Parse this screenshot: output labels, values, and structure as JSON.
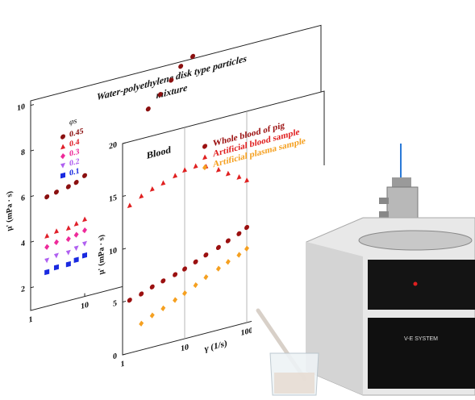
{
  "chart_data": [
    {
      "type": "scatter",
      "title": [
        "Water-polyethylene disk type particles",
        "mixture"
      ],
      "ylabel": "μ' (mPa · s)",
      "legend_title": "φs",
      "xscale": "log",
      "xlim": [
        1,
        100000
      ],
      "xticks": [
        1,
        10
      ],
      "ylim": [
        1,
        10.2
      ],
      "yticks": [
        2,
        4,
        6,
        8,
        10
      ],
      "grid": false,
      "series": [
        {
          "name": "0.45",
          "color": "#8b1010",
          "marker": "circle",
          "x": [
            2,
            3,
            5,
            7,
            10,
            150,
            250,
            400,
            600,
            1000
          ],
          "values": [
            5.8,
            5.9,
            6.0,
            6.1,
            6.3,
            8.5,
            9.0,
            9.5,
            10.0,
            10.3
          ]
        },
        {
          "name": "0.4",
          "color": "#e0202a",
          "marker": "triangle",
          "x": [
            2,
            3,
            5,
            7,
            10
          ],
          "values": [
            4.1,
            4.2,
            4.2,
            4.3,
            4.4
          ]
        },
        {
          "name": "0.3",
          "color": "#ee2a9a",
          "marker": "diamond",
          "x": [
            2,
            3,
            5,
            7,
            10
          ],
          "values": [
            3.6,
            3.7,
            3.7,
            3.8,
            3.9
          ]
        },
        {
          "name": "0.2",
          "color": "#b060f0",
          "marker": "triangle-down",
          "x": [
            2,
            3,
            5,
            7,
            10
          ],
          "values": [
            3.0,
            3.1,
            3.1,
            3.2,
            3.3
          ]
        },
        {
          "name": "0.1",
          "color": "#1a2ae0",
          "marker": "square",
          "x": [
            2,
            3,
            5,
            7,
            10
          ],
          "values": [
            2.5,
            2.6,
            2.6,
            2.7,
            2.8
          ]
        }
      ]
    },
    {
      "type": "scatter",
      "title": "Blood",
      "xlabel": "γ (1/s)",
      "ylabel": "μ' (mPa · s)",
      "xscale": "log",
      "xlim": [
        1,
        1000
      ],
      "xticks": [
        1,
        10,
        100
      ],
      "ylim": [
        0,
        20
      ],
      "yticks": [
        0,
        5,
        10,
        15,
        20
      ],
      "grid": true,
      "series": [
        {
          "name": "Whole blood of pig",
          "color": "#9b1010",
          "marker": "circle",
          "x": [
            1.3,
            2,
            3,
            4.5,
            7,
            10,
            15,
            22,
            35,
            50,
            75,
            100
          ],
          "values": [
            5.0,
            5.3,
            5.7,
            6.0,
            6.3,
            6.6,
            7.0,
            7.4,
            7.8,
            8.2,
            8.6,
            9.0
          ]
        },
        {
          "name": "Artificial blood sample",
          "color": "#e02020",
          "marker": "triangle",
          "x": [
            1.3,
            2,
            3,
            4.5,
            7,
            10,
            15,
            22,
            35,
            50,
            75,
            100
          ],
          "values": [
            14.0,
            14.6,
            15.0,
            15.3,
            15.7,
            16.0,
            16.1,
            15.8,
            15.2,
            14.6,
            14.0,
            13.5
          ]
        },
        {
          "name": "Artificial plasma sample",
          "color": "#f5a020",
          "marker": "diamond",
          "x": [
            2,
            3,
            4.5,
            7,
            10,
            15,
            22,
            35,
            50,
            75,
            100
          ],
          "values": [
            2.5,
            3.0,
            3.4,
            3.9,
            4.3,
            4.8,
            5.3,
            5.8,
            6.2,
            6.6,
            7.0
          ]
        }
      ]
    }
  ],
  "device_label": "V-E SYSTEM"
}
